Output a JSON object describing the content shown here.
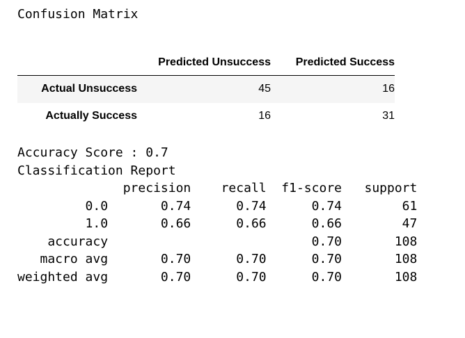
{
  "confusion_title": "Confusion Matrix",
  "confusion_matrix": {
    "columns": [
      "Predicted Unsuccess",
      "Predicted Success"
    ],
    "rows": [
      {
        "label": "Actual Unsuccess",
        "values": [
          "45",
          "16"
        ]
      },
      {
        "label": "Actually Success",
        "values": [
          "16",
          "31"
        ]
      }
    ]
  },
  "accuracy_line": "Accuracy Score : 0.7",
  "report_heading": "Classification Report",
  "report_lines": [
    "              precision    recall  f1-score   support",
    "",
    "         0.0       0.74      0.74      0.74        61",
    "         1.0       0.66      0.66      0.66        47",
    "",
    "    accuracy                           0.70       108",
    "   macro avg       0.70      0.70      0.70       108",
    "weighted avg       0.70      0.70      0.70       108"
  ]
}
